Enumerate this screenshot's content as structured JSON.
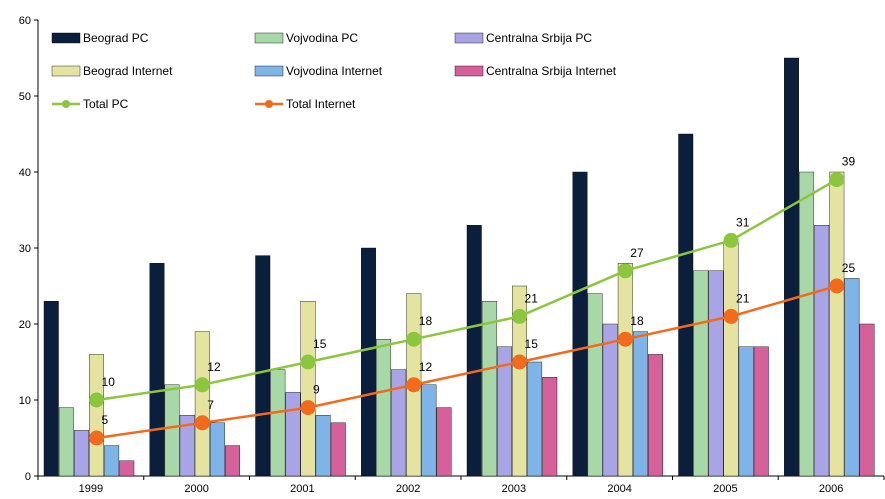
{
  "chart_data": {
    "type": "bar",
    "categories": [
      "1999",
      "2000",
      "2001",
      "2002",
      "2003",
      "2004",
      "2005",
      "2006"
    ],
    "ylim": [
      0,
      60
    ],
    "yticks": [
      "0",
      "10",
      "20",
      "30",
      "40",
      "50",
      "60"
    ],
    "grid": false,
    "legend_position": "top-left",
    "series": [
      {
        "name": "Beograd  PC",
        "kind": "bar",
        "color": "#0B1E3C",
        "values": [
          23,
          28,
          29,
          30,
          33,
          40,
          45,
          55
        ]
      },
      {
        "name": "Vojvodina PC",
        "kind": "bar",
        "color": "#A8D8A8",
        "values": [
          9,
          12,
          14,
          18,
          23,
          24,
          27,
          40
        ]
      },
      {
        "name": "Centralna Srbija PC",
        "kind": "bar",
        "color": "#A9A4E6",
        "values": [
          6,
          8,
          11,
          14,
          17,
          20,
          27,
          33
        ]
      },
      {
        "name": "Beograd Internet",
        "kind": "bar",
        "color": "#E4E4A0",
        "values": [
          16,
          19,
          23,
          24,
          25,
          28,
          31,
          40
        ]
      },
      {
        "name": "Vojvodina Internet",
        "kind": "bar",
        "color": "#7FB4E8",
        "values": [
          4,
          7,
          8,
          12,
          15,
          19,
          17,
          26
        ]
      },
      {
        "name": "Centralna Srbija Internet",
        "kind": "bar",
        "color": "#D6609A",
        "values": [
          2,
          4,
          7,
          9,
          13,
          16,
          17,
          20
        ]
      },
      {
        "name": "Total PC",
        "kind": "line",
        "color": "#8CC63F",
        "values": [
          10,
          12,
          15,
          18,
          21,
          27,
          31,
          39
        ],
        "labels": [
          "10",
          "12",
          "15",
          "18",
          "21",
          "27",
          "31",
          "39"
        ]
      },
      {
        "name": "Total Internet",
        "kind": "line",
        "color": "#F26A1B",
        "values": [
          5,
          7,
          9,
          12,
          15,
          18,
          21,
          25
        ],
        "labels": [
          "5",
          "7",
          "9",
          "12",
          "15",
          "18",
          "21",
          "25"
        ]
      }
    ]
  }
}
